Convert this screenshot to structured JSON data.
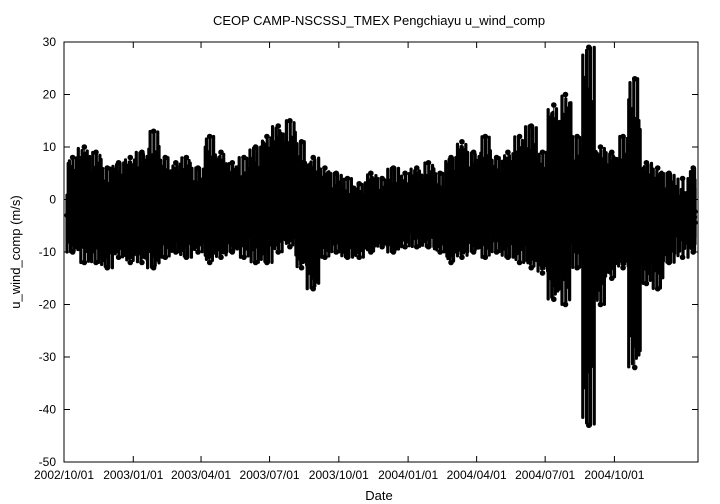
{
  "chart_data": {
    "type": "scatter",
    "title": "CEOP CAMP-NSCSSJ_TMEX Pengchiayu  u_wind_comp",
    "xlabel": "Date",
    "ylabel": "u_wind_comp (m/s)",
    "ylim": [
      -50,
      30
    ],
    "xlim": [
      "2002-10-01",
      "2005-01-20"
    ],
    "yticks": [
      30,
      20,
      10,
      0,
      -10,
      -20,
      -30,
      -40,
      -50
    ],
    "xticks": [
      {
        "date": "2002-10-01",
        "label": "2002/10/01"
      },
      {
        "date": "2003-01-01",
        "label": "2003/01/01"
      },
      {
        "date": "2003-04-01",
        "label": "2003/04/01"
      },
      {
        "date": "2003-07-01",
        "label": "2003/07/01"
      },
      {
        "date": "2003-10-01",
        "label": "2003/10/01"
      },
      {
        "date": "2004-01-01",
        "label": "2004/01/01"
      },
      {
        "date": "2004-04-01",
        "label": "2004/04/01"
      },
      {
        "date": "2004-07-01",
        "label": "2004/07/01"
      },
      {
        "date": "2004-10-01",
        "label": "2004/10/01"
      }
    ],
    "grid": false,
    "legend": "none",
    "marker_color": "#000000",
    "series": [
      {
        "x": [
          "2002-10-05",
          "2002-10-20",
          "2002-11-05",
          "2002-11-20",
          "2002-12-05",
          "2002-12-20",
          "2003-01-05",
          "2003-01-20",
          "2003-02-05",
          "2003-02-20",
          "2003-03-05",
          "2003-03-20",
          "2003-04-05",
          "2003-04-20",
          "2003-05-05",
          "2003-05-20",
          "2003-06-05",
          "2003-06-20",
          "2003-07-05",
          "2003-07-20",
          "2003-08-05",
          "2003-08-20",
          "2003-09-05",
          "2003-09-20",
          "2003-10-05",
          "2003-10-20",
          "2003-11-05",
          "2003-11-20",
          "2003-12-05",
          "2003-12-20",
          "2004-01-05",
          "2004-01-20",
          "2004-02-05",
          "2004-02-20",
          "2004-03-05",
          "2004-03-20",
          "2004-04-05",
          "2004-04-20",
          "2004-05-05",
          "2004-05-20",
          "2004-06-05",
          "2004-06-20",
          "2004-07-05",
          "2004-07-20",
          "2004-08-05",
          "2004-08-20",
          "2004-09-05",
          "2004-09-20",
          "2004-10-05",
          "2004-10-20",
          "2004-11-05",
          "2004-11-20",
          "2004-12-05",
          "2004-12-20",
          "2005-01-10"
        ],
        "max": [
          8,
          10,
          9,
          6,
          7,
          8,
          9,
          13,
          8,
          7,
          8,
          6,
          12,
          9,
          7,
          8,
          10,
          12,
          14,
          15,
          11,
          8,
          6,
          5,
          4,
          3,
          5,
          4,
          6,
          5,
          6,
          7,
          5,
          8,
          11,
          9,
          12,
          8,
          9,
          12,
          14,
          9,
          18,
          20,
          12,
          29,
          10,
          9,
          12,
          23,
          7,
          6,
          5,
          4,
          6
        ],
        "min": [
          -10,
          -12,
          -12,
          -13,
          -11,
          -12,
          -12,
          -13,
          -11,
          -10,
          -11,
          -10,
          -12,
          -11,
          -10,
          -11,
          -12,
          -12,
          -10,
          -9,
          -13,
          -17,
          -11,
          -10,
          -11,
          -11,
          -10,
          -9,
          -10,
          -9,
          -9,
          -9,
          -10,
          -12,
          -11,
          -10,
          -11,
          -10,
          -11,
          -12,
          -13,
          -14,
          -19,
          -20,
          -13,
          -43,
          -20,
          -15,
          -13,
          -32,
          -16,
          -17,
          -12,
          -11,
          -10
        ],
        "mean": [
          -3,
          -2,
          -3,
          -3,
          -2,
          -3,
          -2,
          -1,
          -2,
          -3,
          -2,
          -3,
          -2,
          -2,
          -3,
          -3,
          -2,
          -1,
          0,
          1,
          -2,
          -5,
          -4,
          -4,
          -5,
          -5,
          -4,
          -4,
          -4,
          -4,
          -3,
          -3,
          -3,
          -2,
          -1,
          -2,
          -1,
          -2,
          -2,
          -1,
          -1,
          -2,
          -1,
          0,
          -2,
          -3,
          -3,
          -2,
          -3,
          -3,
          -4,
          -5,
          -4,
          -4,
          -3
        ]
      }
    ]
  }
}
